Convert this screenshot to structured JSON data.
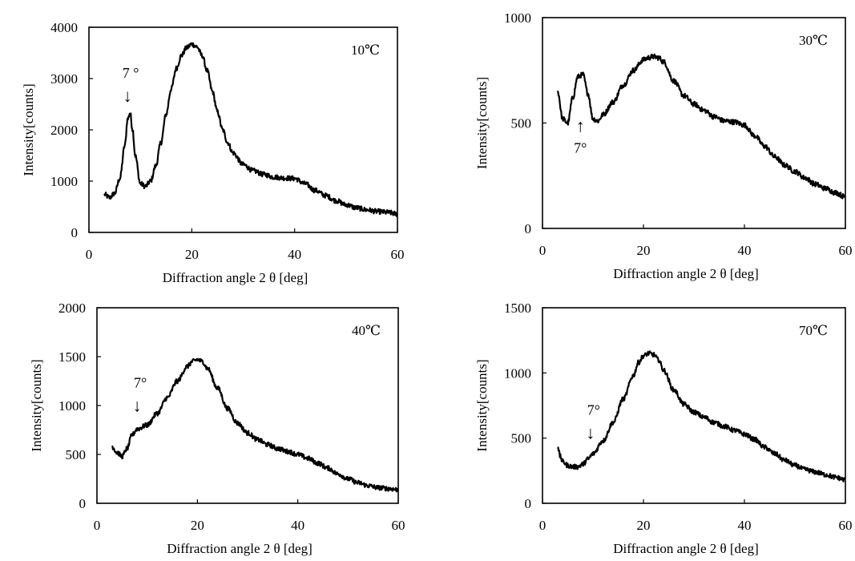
{
  "chart_data": [
    {
      "type": "line",
      "title": "",
      "xlabel": "Diffraction angle 2 θ [deg]",
      "ylabel": "Intensity[counts]",
      "xlim": [
        0,
        60
      ],
      "ylim": [
        0,
        4000
      ],
      "x_ticks": [
        "0",
        "20",
        "40",
        "60"
      ],
      "y_ticks": [
        "0",
        "1000",
        "2000",
        "3000",
        "4000"
      ],
      "grid": false,
      "temperature_label": "10℃",
      "annotation": {
        "text": "7 °",
        "arrow": "↓",
        "x": 7.5,
        "direction": "down"
      },
      "series": [
        {
          "x": [
            3,
            4,
            5,
            6,
            7,
            7.5,
            8,
            8.5,
            9,
            10,
            11,
            12,
            13,
            14,
            15,
            16,
            17,
            18,
            19,
            20,
            21,
            22,
            23,
            24,
            25,
            26,
            27,
            28,
            30,
            32,
            34,
            36,
            38,
            40,
            42,
            44,
            46,
            48,
            50,
            52,
            54,
            56,
            58,
            60
          ],
          "y": [
            740,
            680,
            760,
            1050,
            1700,
            2200,
            2330,
            2000,
            1500,
            950,
            900,
            1000,
            1300,
            1750,
            2300,
            2800,
            3200,
            3450,
            3600,
            3670,
            3620,
            3450,
            3150,
            2750,
            2350,
            2000,
            1750,
            1550,
            1320,
            1200,
            1130,
            1080,
            1060,
            1050,
            950,
            820,
            720,
            620,
            540,
            480,
            440,
            410,
            390,
            360
          ]
        }
      ]
    },
    {
      "type": "line",
      "title": "",
      "xlabel": "Diffraction angle 2 θ [deg]",
      "ylabel": "Intensity[counts]",
      "xlim": [
        0,
        60
      ],
      "ylim": [
        0,
        1000
      ],
      "x_ticks": [
        "0",
        "20",
        "40",
        "60"
      ],
      "y_ticks": [
        "0",
        "500",
        "1000"
      ],
      "grid": false,
      "temperature_label": "30℃",
      "annotation": {
        "text": "7°",
        "arrow": "↑",
        "x": 7.5,
        "direction": "up"
      },
      "series": [
        {
          "x": [
            3,
            4,
            5,
            6,
            7,
            8,
            9,
            10,
            11,
            12,
            14,
            16,
            18,
            20,
            21,
            22,
            23,
            24,
            26,
            28,
            30,
            32,
            34,
            36,
            38,
            40,
            42,
            44,
            46,
            48,
            50,
            52,
            54,
            56,
            58,
            60
          ],
          "y": [
            650,
            520,
            500,
            620,
            720,
            730,
            640,
            520,
            510,
            540,
            600,
            680,
            750,
            800,
            810,
            815,
            810,
            790,
            700,
            630,
            590,
            560,
            530,
            510,
            505,
            490,
            440,
            390,
            340,
            300,
            270,
            240,
            210,
            190,
            170,
            150
          ]
        }
      ]
    },
    {
      "type": "line",
      "title": "",
      "xlabel": "Diffraction angle 2 θ [deg]",
      "ylabel": "Intensity[counts]",
      "xlim": [
        0,
        60
      ],
      "ylim": [
        0,
        2000
      ],
      "x_ticks": [
        "0",
        "20",
        "40",
        "60"
      ],
      "y_ticks": [
        "0",
        "500",
        "1000",
        "1500",
        "2000"
      ],
      "grid": false,
      "temperature_label": "40℃",
      "annotation": {
        "text": "7°",
        "arrow": "↓",
        "x": 8,
        "direction": "down"
      },
      "series": [
        {
          "x": [
            3,
            4,
            5,
            6,
            7,
            8,
            10,
            12,
            14,
            16,
            18,
            19,
            20,
            21,
            22,
            24,
            26,
            28,
            30,
            32,
            34,
            36,
            38,
            40,
            42,
            44,
            46,
            48,
            50,
            52,
            54,
            56,
            58,
            60
          ],
          "y": [
            580,
            520,
            480,
            560,
            700,
            760,
            800,
            920,
            1080,
            1250,
            1400,
            1450,
            1470,
            1450,
            1380,
            1180,
            970,
            820,
            720,
            650,
            600,
            560,
            530,
            500,
            460,
            410,
            360,
            300,
            250,
            210,
            180,
            160,
            150,
            140
          ]
        }
      ]
    },
    {
      "type": "line",
      "title": "",
      "xlabel": "Diffraction angle 2 θ [deg]",
      "ylabel": "Intensity[counts]",
      "xlim": [
        0,
        60
      ],
      "ylim": [
        0,
        1500
      ],
      "x_ticks": [
        "0",
        "20",
        "40",
        "60"
      ],
      "y_ticks": [
        "0",
        "500",
        "1000",
        "1500"
      ],
      "grid": false,
      "temperature_label": "70℃",
      "annotation": {
        "text": "7°",
        "arrow": "↓",
        "x": 9.5,
        "direction": "down"
      },
      "series": [
        {
          "x": [
            3,
            3.5,
            4,
            5,
            6,
            7,
            8,
            9,
            10,
            12,
            14,
            16,
            18,
            19,
            20,
            21,
            22,
            23,
            24,
            26,
            28,
            30,
            32,
            34,
            36,
            38,
            40,
            42,
            44,
            46,
            48,
            50,
            52,
            54,
            56,
            58,
            60
          ],
          "y": [
            440,
            360,
            320,
            290,
            280,
            280,
            300,
            340,
            380,
            480,
            620,
            800,
            980,
            1080,
            1130,
            1150,
            1140,
            1100,
            1020,
            870,
            760,
            700,
            660,
            620,
            590,
            560,
            530,
            490,
            430,
            380,
            330,
            290,
            260,
            240,
            220,
            200,
            180
          ]
        }
      ]
    }
  ]
}
